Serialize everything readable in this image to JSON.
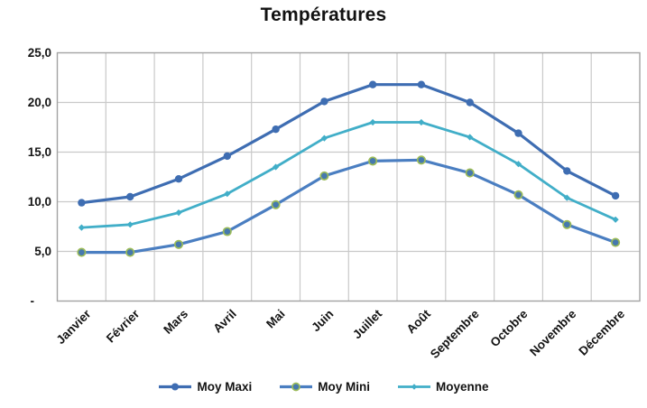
{
  "chart_data": {
    "type": "line",
    "title": "Températures",
    "categories": [
      "Janvier",
      "Février",
      "Mars",
      "Avril",
      "Mai",
      "Juin",
      "Juillet",
      "Août",
      "Septembre",
      "Octobre",
      "Novembre",
      "Décembre"
    ],
    "series": [
      {
        "name": "Moy Maxi",
        "values": [
          9.9,
          10.5,
          12.3,
          14.6,
          17.3,
          20.1,
          21.8,
          21.8,
          20.0,
          16.9,
          13.1,
          10.6
        ],
        "color": "#3E6DB2",
        "line_width": 3.2,
        "marker": "circle",
        "marker_fill": "#3E6DB2",
        "marker_ring": "none"
      },
      {
        "name": "Moy Mini",
        "values": [
          4.9,
          4.9,
          5.7,
          7.0,
          9.7,
          12.6,
          14.1,
          14.2,
          12.9,
          10.7,
          7.7,
          5.9
        ],
        "color": "#4A7EC1",
        "line_width": 3.2,
        "marker": "circle",
        "marker_fill": "#4679AE",
        "marker_ring": "#9BBB59"
      },
      {
        "name": "Moyenne",
        "values": [
          7.4,
          7.7,
          8.9,
          10.8,
          13.5,
          16.4,
          18.0,
          18.0,
          16.5,
          13.8,
          10.4,
          8.2
        ],
        "color": "#41AEC8",
        "line_width": 2.8,
        "marker": "diamond",
        "marker_fill": "#41AEC8",
        "marker_ring": "none"
      }
    ],
    "y_axis": {
      "ticks": [
        {
          "label": "25,0",
          "value": 25
        },
        {
          "label": "20,0",
          "value": 20
        },
        {
          "label": "15,0",
          "value": 15
        },
        {
          "label": "10,0",
          "value": 10
        },
        {
          "label": "5,0",
          "value": 5
        },
        {
          "label": "-",
          "value": 0
        }
      ]
    },
    "ylim": [
      0,
      25
    ],
    "grid": true,
    "legend_position": "bottom",
    "colors": {
      "grid": "#C9C9C9",
      "border": "#A3A3A3",
      "label_text": "#141414"
    }
  }
}
